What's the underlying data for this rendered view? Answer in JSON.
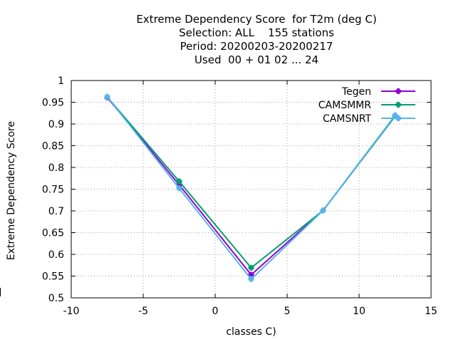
{
  "chart_data": {
    "type": "line",
    "title_lines": [
      "Extreme Dependency Score  for T2m (deg C)",
      "Selection: ALL    155 stations",
      "Period: 20200203-20200217",
      "Used  00 + 01 02 ... 24"
    ],
    "xlabel": "classes C)",
    "ylabel": "Extreme Dependency Score",
    "xlim": [
      -10,
      15
    ],
    "ylim": [
      0.5,
      1.0
    ],
    "xticks": [
      -10,
      -5,
      0,
      5,
      10,
      15
    ],
    "yticks": [
      0.5,
      0.55,
      0.6,
      0.65,
      0.7,
      0.75,
      0.8,
      0.85,
      0.9,
      0.95,
      1.0
    ],
    "ytick_labels": [
      "0.5",
      "0.55",
      "0.6",
      "0.65",
      "0.7",
      "0.75",
      "0.8",
      "0.85",
      "0.9",
      "0.95",
      "1"
    ],
    "grid": true,
    "legend_position": "top-right",
    "series": [
      {
        "name": "Tegen",
        "color": "#9400d3",
        "x": [
          -7.5,
          -2.5,
          2.5,
          7.5,
          12.5
        ],
        "y": [
          0.961,
          0.76,
          0.553,
          0.701,
          0.918
        ]
      },
      {
        "name": "CAMSMMR",
        "color": "#009e73",
        "x": [
          -7.5,
          -2.5,
          2.5,
          7.5,
          12.5
        ],
        "y": [
          0.962,
          0.768,
          0.569,
          0.701,
          0.918
        ]
      },
      {
        "name": "CAMSNRT",
        "color": "#56b4e9",
        "x": [
          -7.5,
          -2.5,
          2.5,
          7.5,
          12.5
        ],
        "y": [
          0.963,
          0.752,
          0.543,
          0.701,
          0.92
        ]
      }
    ]
  }
}
